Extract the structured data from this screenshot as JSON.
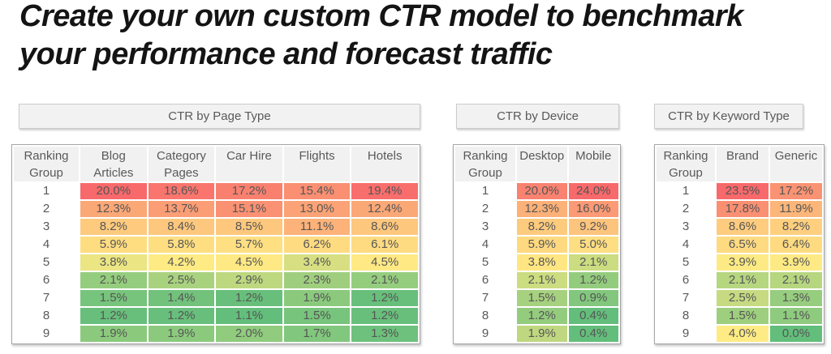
{
  "title": {
    "line1": "Create your own custom CTR model to benchmark",
    "line2": "your performance and forecast traffic"
  },
  "heatmap_colors": {
    "low": "#63BE7B",
    "mid": "#FFEB84",
    "high": "#F8696B"
  },
  "chart_data": [
    {
      "type": "heatmap",
      "title": "CTR by Page Type",
      "row_header": "Ranking Group",
      "columns": [
        "Blog Articles",
        "Category Pages",
        "Car Hire",
        "Flights",
        "Hotels"
      ],
      "rows": [
        "1",
        "2",
        "3",
        "4",
        "5",
        "6",
        "7",
        "8",
        "9"
      ],
      "unit": "%",
      "values_pct": [
        [
          20.0,
          18.6,
          17.2,
          15.4,
          19.4
        ],
        [
          12.3,
          13.7,
          15.1,
          13.0,
          12.4
        ],
        [
          8.2,
          8.4,
          8.5,
          11.1,
          8.6
        ],
        [
          5.9,
          5.8,
          5.7,
          6.2,
          6.1
        ],
        [
          3.8,
          4.2,
          4.5,
          3.4,
          4.5
        ],
        [
          2.1,
          2.5,
          2.9,
          2.3,
          2.1
        ],
        [
          1.5,
          1.4,
          1.2,
          1.9,
          1.2
        ],
        [
          1.2,
          1.2,
          1.1,
          1.5,
          1.2
        ],
        [
          1.9,
          1.9,
          2.0,
          1.7,
          1.3
        ]
      ],
      "color_scale": "3-color scale: min=green, median=yellow, max=red"
    },
    {
      "type": "heatmap",
      "title": "CTR by Device",
      "row_header": "Ranking Group",
      "columns": [
        "Desktop",
        "Mobile"
      ],
      "rows": [
        "1",
        "2",
        "3",
        "4",
        "5",
        "6",
        "7",
        "8",
        "9"
      ],
      "unit": "%",
      "values_pct": [
        [
          20.0,
          24.0
        ],
        [
          12.3,
          16.0
        ],
        [
          8.2,
          9.2
        ],
        [
          5.9,
          5.0
        ],
        [
          3.8,
          2.1
        ],
        [
          2.1,
          1.2
        ],
        [
          1.5,
          0.9
        ],
        [
          1.2,
          0.4
        ],
        [
          1.9,
          0.4
        ]
      ],
      "color_scale": "3-color scale: min=green, median=yellow, max=red"
    },
    {
      "type": "heatmap",
      "title": "CTR by Keyword Type",
      "row_header": "Ranking Group",
      "columns": [
        "Brand",
        "Generic"
      ],
      "rows": [
        "1",
        "2",
        "3",
        "4",
        "5",
        "6",
        "7",
        "8",
        "9"
      ],
      "unit": "%",
      "values_pct": [
        [
          23.5,
          17.2
        ],
        [
          17.8,
          11.9
        ],
        [
          8.6,
          8.2
        ],
        [
          6.5,
          6.4
        ],
        [
          3.9,
          3.9
        ],
        [
          2.1,
          2.1
        ],
        [
          2.5,
          1.3
        ],
        [
          1.5,
          1.1
        ],
        [
          4.0,
          0.0
        ]
      ],
      "color_scale": "3-color scale: min=green, median=yellow, max=red"
    }
  ]
}
